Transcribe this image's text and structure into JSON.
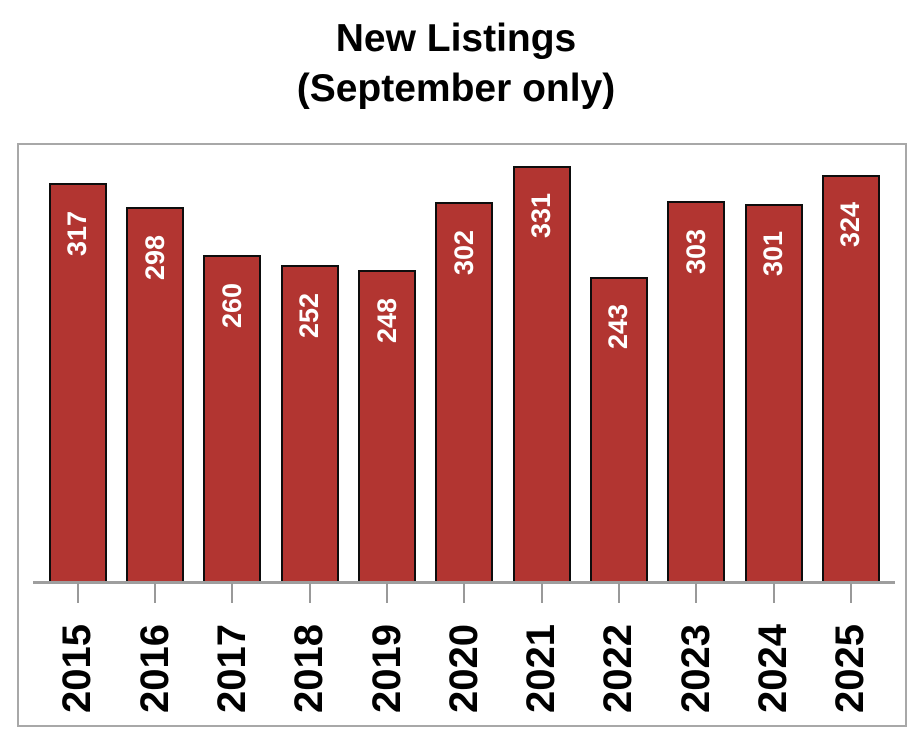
{
  "header": {
    "title_line1": "New Listings",
    "title_line2": "(September only)"
  },
  "chart_data": {
    "type": "bar",
    "title": "New Listings (September only)",
    "categories": [
      "2015",
      "2016",
      "2017",
      "2018",
      "2019",
      "2020",
      "2021",
      "2022",
      "2023",
      "2024",
      "2025"
    ],
    "values": [
      317,
      298,
      260,
      252,
      248,
      302,
      331,
      243,
      303,
      301,
      324
    ],
    "xlabel": "",
    "ylabel": "",
    "ylim": [
      0,
      350
    ],
    "grid": false,
    "legend": "none",
    "value_labels_shown": true,
    "value_label_rotation": -90,
    "x_tick_label_rotation": -90,
    "colors": {
      "bar_fill": "#B23531",
      "bar_border": "#0D0D0D",
      "value_label": "#FFFFFF",
      "axis": "#9E9E9E",
      "frame_border": "#A8A8A8",
      "title_text": "#000000",
      "tick_label_text": "#000000",
      "background": "#FFFFFF"
    }
  }
}
